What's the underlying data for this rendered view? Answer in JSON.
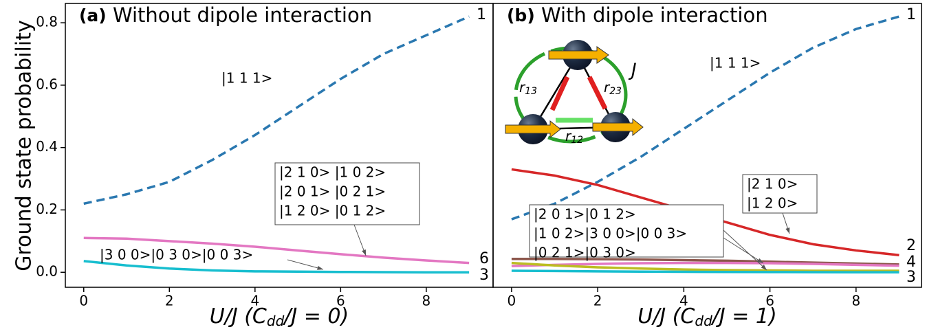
{
  "chart_data": [
    {
      "type": "line",
      "panel_label": "(a)",
      "title": "Without dipole interaction",
      "ylabel": "Ground state probability",
      "xlabel": {
        "main": "U/J (C",
        "sub": "dd",
        "rest": "/J = 0)"
      },
      "xlim": [
        -0.43,
        9.56
      ],
      "ylim": [
        -0.048,
        0.862
      ],
      "xticks": [
        0,
        2,
        4,
        6,
        8
      ],
      "yticks": [
        {
          "value": 0,
          "label": "0.0"
        },
        0.2,
        0.4,
        0.6,
        0.8
      ],
      "x": [
        0,
        1,
        2,
        3,
        4,
        5,
        6,
        7,
        8,
        9
      ],
      "series": [
        {
          "color": "#2a78b0",
          "style": "dashed",
          "end_label": "1",
          "values": [
            0.22,
            0.25,
            0.29,
            0.36,
            0.44,
            0.53,
            0.62,
            0.7,
            0.76,
            0.82
          ]
        },
        {
          "color": "#e377c2",
          "style": "solid",
          "end_label": "6",
          "values": [
            0.11,
            0.108,
            0.1,
            0.092,
            0.082,
            0.07,
            0.058,
            0.047,
            0.038,
            0.03
          ]
        },
        {
          "color": "#17becf",
          "style": "solid",
          "end_label": "3",
          "values": [
            0.036,
            0.022,
            0.012,
            0.006,
            0.003,
            0.002,
            0.001,
            0.0005,
            0,
            0
          ]
        }
      ],
      "annotations": [
        {
          "boxed": false,
          "lines": [
            "|1 1 1>"
          ]
        },
        {
          "boxed": true,
          "lines": [
            "|2 1 0>  |1 0 2>",
            "|2 0 1>  |0 2 1>",
            "|1 2 0>  |0 1 2>"
          ]
        },
        {
          "boxed": false,
          "lines": [
            "|3 0 0>|0 3 0>|0 0 3>"
          ]
        }
      ]
    },
    {
      "type": "line",
      "panel_label": "(b)",
      "title": "With dipole interaction",
      "xlabel": {
        "main": "U/J (C",
        "sub": "dd",
        "rest": "/J = 1)"
      },
      "xlim": [
        -0.43,
        9.52
      ],
      "ylim": [
        -0.048,
        0.862
      ],
      "xticks": [
        0,
        2,
        4,
        6,
        8
      ],
      "x": [
        0,
        1,
        2,
        3,
        4,
        5,
        6,
        7,
        8,
        9
      ],
      "series": [
        {
          "color": "#2a78b0",
          "style": "dashed",
          "end_label": "1",
          "values": [
            0.17,
            0.22,
            0.29,
            0.37,
            0.46,
            0.55,
            0.64,
            0.72,
            0.78,
            0.82
          ]
        },
        {
          "color": "#d62728",
          "style": "solid",
          "end_label": "2",
          "values": [
            0.33,
            0.31,
            0.28,
            0.24,
            0.2,
            0.16,
            0.12,
            0.09,
            0.07,
            0.055
          ]
        },
        {
          "color": "#8c564b",
          "style": "solid",
          "end_label": "4",
          "values": [
            0.043,
            0.043,
            0.042,
            0.041,
            0.039,
            0.037,
            0.034,
            0.031,
            0.028,
            0.025
          ]
        },
        {
          "color": "#e377c2",
          "style": "solid",
          "values": [
            0.02,
            0.024,
            0.027,
            0.029,
            0.03,
            0.03,
            0.029,
            0.027,
            0.024,
            0.021
          ]
        },
        {
          "color": "#bcbd22",
          "style": "solid",
          "values": [
            0.03,
            0.022,
            0.016,
            0.012,
            0.009,
            0.007,
            0.006,
            0.005,
            0.005,
            0.005
          ]
        },
        {
          "color": "#17becf",
          "style": "solid",
          "end_label": "3",
          "values": [
            0.005,
            0.004,
            0.003,
            0.002,
            0.0015,
            0.001,
            0.0008,
            0.0005,
            0.0003,
            0.0002
          ]
        }
      ],
      "annotations": [
        {
          "boxed": false,
          "lines": [
            "|1 1 1>"
          ]
        },
        {
          "boxed": true,
          "lines": [
            "|2 1 0>",
            "|1 2 0>"
          ]
        },
        {
          "boxed": true,
          "lines": [
            "|2 0 1>|0 1 2>",
            "|1 0 2>|3 0 0>|0 0 3>",
            "|0 2 1>|0 3 0>"
          ]
        }
      ],
      "inset": {
        "J": "J",
        "r13": {
          "symbol": "r",
          "sub": "13"
        },
        "r23": {
          "symbol": "r",
          "sub": "23"
        },
        "r12": {
          "symbol": "r",
          "sub": "12"
        }
      }
    }
  ]
}
